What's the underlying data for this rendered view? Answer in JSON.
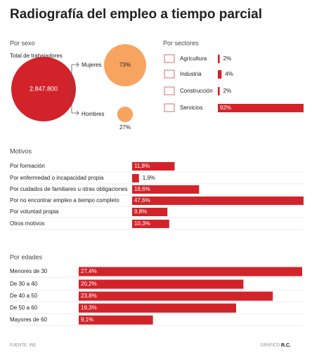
{
  "title": "Radiografía del empleo a tiempo parcial",
  "source": "FUENTE: INE",
  "credit_prefix": "GRÁFICO",
  "credit": "R.C.",
  "chart_data": [
    {
      "type": "bubble",
      "title": "Por sexo",
      "total_title": "Total de trabajadores",
      "total": 2847800,
      "total_label": "2.847.800",
      "total_color": "#d2232a",
      "categories": [
        "Mujeres",
        "Hombres"
      ],
      "values": [
        73,
        27
      ],
      "value_labels": [
        "73%",
        "27%"
      ],
      "color": "#f7a460"
    },
    {
      "type": "bar",
      "title": "Por sectores",
      "categories": [
        "Agricultura",
        "Industria",
        "Construcción",
        "Servicios"
      ],
      "values": [
        2,
        4,
        2,
        92
      ],
      "value_labels": [
        "2%",
        "4%",
        "2%",
        "92%"
      ],
      "color": "#d2232a"
    },
    {
      "type": "bar",
      "title": "Motivos",
      "categories": [
        "Por formación",
        "Por enfermedad o incapacidad propia",
        "Por cuidados de familiares u otras obligaciones",
        "Por no encontrar empleo a tiempo completo",
        "Por voluntad propia",
        "Otros motivos"
      ],
      "values": [
        11.8,
        1.9,
        18.6,
        47.6,
        9.8,
        10.3
      ],
      "value_labels": [
        "11,8%",
        "1,9%",
        "18,6%",
        "47,6%",
        "9,8%",
        "10,3%"
      ],
      "color": "#d2232a"
    },
    {
      "type": "bar",
      "title": "Por edades",
      "categories": [
        "Menores de 30",
        "De 30 a 40",
        "De 40 a 50",
        "De 50 a 60",
        "Mayores de 60"
      ],
      "values": [
        27.4,
        20.2,
        23.8,
        19.3,
        9.1
      ],
      "value_labels": [
        "27,4%",
        "20,2%",
        "23,8%",
        "19,3%",
        "9,1%"
      ],
      "color": "#d2232a"
    }
  ]
}
